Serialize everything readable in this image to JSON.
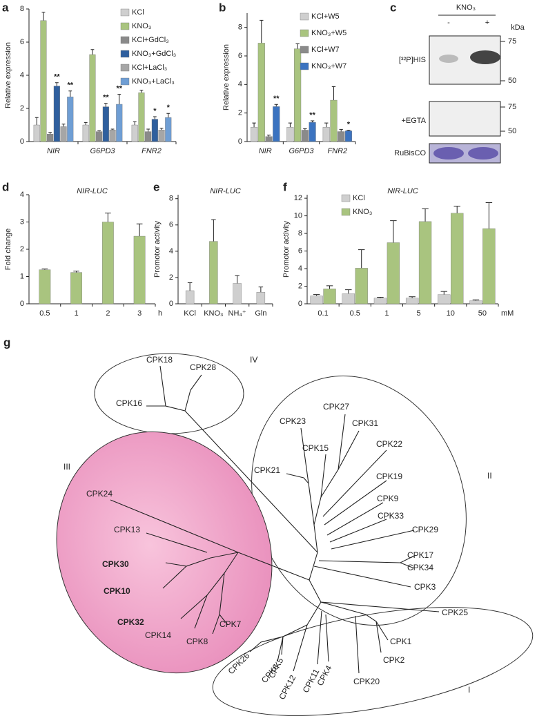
{
  "chart_data": [
    {
      "type": "bar",
      "panel": "a",
      "ylabel": "Relative expression",
      "ylim": [
        0,
        8
      ],
      "yticks": [
        0,
        2,
        4,
        6,
        8
      ],
      "legend": "top-right",
      "italic_categories": true,
      "categories": [
        "NIR",
        "G6PD3",
        "FNR2"
      ],
      "series": [
        {
          "name": "KCl",
          "color": "#cfcfcf",
          "values": [
            1.0,
            1.0,
            1.0
          ],
          "errors": [
            0.45,
            0.15,
            0.2
          ]
        },
        {
          "name": "KNO₃",
          "color": "#a9c47f",
          "values": [
            7.3,
            5.25,
            2.95
          ],
          "errors": [
            0.5,
            0.3,
            0.15
          ]
        },
        {
          "name": "KCl+GdCl₃",
          "color": "#8a8a8a",
          "values": [
            0.45,
            0.6,
            0.6
          ],
          "errors": [
            0.1,
            0.05,
            0.15
          ]
        },
        {
          "name": "KNO₃+GdCl₃",
          "color": "#2f5f9e",
          "values": [
            3.35,
            2.1,
            1.35
          ],
          "errors": [
            0.2,
            0.2,
            0.15
          ],
          "significance": [
            "**",
            "**",
            "*"
          ]
        },
        {
          "name": "KCl+LaCl₃",
          "color": "#a6a6a6",
          "values": [
            0.9,
            0.7,
            0.7
          ],
          "errors": [
            0.15,
            0.05,
            0.1
          ]
        },
        {
          "name": "KNO₃+LaCl₃",
          "color": "#6f9ed4",
          "values": [
            2.7,
            2.25,
            1.45
          ],
          "errors": [
            0.35,
            0.6,
            0.25
          ],
          "significance": [
            "**",
            "**",
            "*"
          ]
        }
      ]
    },
    {
      "type": "bar",
      "panel": "b",
      "ylabel": "Relative expression",
      "ylim": [
        0,
        9
      ],
      "yticks": [
        0,
        2,
        4,
        6,
        8
      ],
      "legend": "top-right",
      "italic_categories": true,
      "categories": [
        "NIR",
        "G6PD3",
        "FNR2"
      ],
      "series": [
        {
          "name": "KCl+W5",
          "color": "#cfcfcf",
          "values": [
            1.0,
            1.0,
            1.0
          ],
          "errors": [
            0.3,
            0.3,
            0.3
          ]
        },
        {
          "name": "KNO₃+W5",
          "color": "#a9c47f",
          "values": [
            6.9,
            6.5,
            2.9
          ],
          "errors": [
            1.6,
            0.35,
            0.95
          ]
        },
        {
          "name": "KCl+W7",
          "color": "#8a8a8a",
          "values": [
            0.35,
            0.8,
            0.7
          ],
          "errors": [
            0.1,
            0.1,
            0.15
          ]
        },
        {
          "name": "KNO₃+W7",
          "color": "#3b73c0",
          "values": [
            2.45,
            1.35,
            0.75
          ],
          "errors": [
            0.15,
            0.1,
            0.05
          ],
          "significance": [
            "**",
            "**",
            "*"
          ]
        }
      ]
    },
    {
      "type": "bar",
      "panel": "d",
      "title": "NIR-LUC",
      "ylabel": "Fold change",
      "ylim": [
        0,
        4
      ],
      "yticks": [
        0,
        1,
        2,
        3,
        4
      ],
      "x_unit": "h",
      "categories": [
        "0.5",
        "1",
        "2",
        "3"
      ],
      "color": "#a9c47f",
      "values": [
        1.25,
        1.15,
        3.0,
        2.48
      ],
      "errors": [
        0.03,
        0.05,
        0.33,
        0.45
      ]
    },
    {
      "type": "bar",
      "panel": "e",
      "title": "NIR-LUC",
      "ylabel": "Promotor activity",
      "ylim": [
        0,
        8.3
      ],
      "yticks": [
        0,
        2,
        4,
        6,
        8
      ],
      "categories": [
        "KCl",
        "KNO₃",
        "NH₄⁺",
        "Gln"
      ],
      "colors": [
        "#cfcfcf",
        "#a9c47f",
        "#cfcfcf",
        "#cfcfcf"
      ],
      "values": [
        1.0,
        4.75,
        1.55,
        0.88
      ],
      "errors": [
        0.6,
        1.65,
        0.6,
        0.4
      ]
    },
    {
      "type": "bar",
      "panel": "f",
      "title": "NIR-LUC",
      "ylabel": "Promotor activity",
      "ylim": [
        0,
        12.4
      ],
      "yticks": [
        0,
        2,
        4,
        6,
        8,
        10,
        12
      ],
      "legend": "top-left",
      "x_unit": "mM",
      "categories": [
        "0.1",
        "0.5",
        "1",
        "5",
        "10",
        "50"
      ],
      "series": [
        {
          "name": "KCl",
          "color": "#cfcfcf",
          "values": [
            0.9,
            1.15,
            0.65,
            0.65,
            1.05,
            0.35
          ],
          "errors": [
            0.15,
            0.45,
            0.1,
            0.15,
            0.35,
            0.1
          ]
        },
        {
          "name": "KNO₃",
          "color": "#a9c47f",
          "values": [
            1.7,
            4.05,
            6.95,
            9.35,
            10.3,
            8.55
          ],
          "errors": [
            0.35,
            2.1,
            2.5,
            1.45,
            0.8,
            2.95
          ]
        }
      ]
    }
  ],
  "blot": {
    "panel": "c",
    "title": "KNO₃",
    "lanes": [
      "-",
      "+"
    ],
    "unit": "kDa",
    "rows": [
      {
        "label": "[³²P]HIS",
        "markers": [
          75,
          50
        ]
      },
      {
        "label": "+EGTA",
        "markers": [
          75,
          50
        ]
      },
      {
        "label": "RuBisCO"
      }
    ]
  },
  "tree": {
    "panel": "g",
    "clades": [
      "IV",
      "II",
      "III",
      "I"
    ],
    "leaves": [
      "CPK18",
      "CPK28",
      "CPK16",
      "CPK23",
      "CPK27",
      "CPK31",
      "CPK15",
      "CPK22",
      "CPK21",
      "CPK19",
      "CPK9",
      "CPK33",
      "CPK29",
      "CPK17",
      "CPK34",
      "CPK3",
      "CPK25",
      "CPK1",
      "CPK2",
      "CPK20",
      "CPK4",
      "CPK11",
      "CPK12",
      "CPK6",
      "CPK5",
      "CPK26",
      "CPK24",
      "CPK13",
      "CPK30",
      "CPK10",
      "CPK32",
      "CPK14",
      "CPK8",
      "CPK7"
    ]
  }
}
